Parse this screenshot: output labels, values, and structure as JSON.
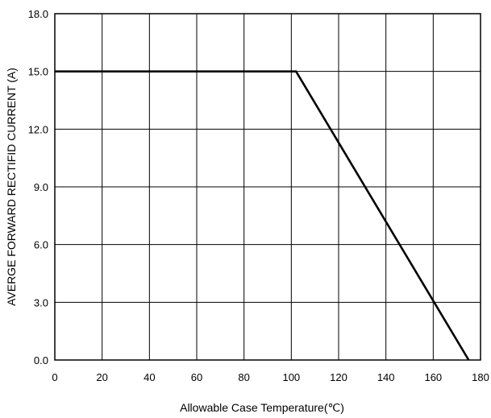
{
  "chart_data": {
    "type": "line",
    "title": "",
    "xlabel": "Allowable Case Temperature(℃)",
    "ylabel": "AVERGE FORWARD  RECTIFID CURRENT (A)",
    "xlim": [
      0,
      180
    ],
    "ylim": [
      0,
      18
    ],
    "x_ticks": [
      "0",
      "20",
      "40",
      "60",
      "80",
      "100",
      "120",
      "140",
      "160",
      "180"
    ],
    "y_ticks": [
      "0.0",
      "3.0",
      "6.0",
      "9.0",
      "12.0",
      "15.0",
      "18.0"
    ],
    "grid": true,
    "legend": "none",
    "series": [
      {
        "x": [
          0,
          102,
          175
        ],
        "y": [
          15.0,
          15.0,
          0.0
        ]
      }
    ]
  }
}
